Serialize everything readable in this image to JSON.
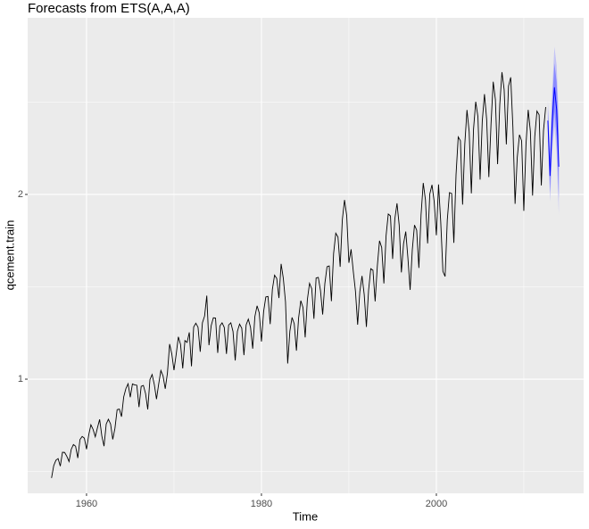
{
  "chart_data": {
    "type": "line",
    "title": "Forecasts from ETS(A,A,A)",
    "x_label": "Time",
    "y_label": "qcement.train",
    "xlim": [
      1953.27,
      2016.84
    ],
    "ylim": [
      0.382,
      2.956
    ],
    "xticks": [
      1960,
      1980,
      2000
    ],
    "yticks": [
      1,
      2
    ],
    "xminor": [
      1970,
      1990,
      2010
    ],
    "yminor": [
      0.5,
      1.5,
      2.5
    ],
    "grid": true,
    "series": [
      {
        "name": "qcement.train",
        "color": "#000000",
        "x": [
          1956,
          1956.25,
          1956.5,
          1956.75,
          1957,
          1957.25,
          1957.5,
          1957.75,
          1958,
          1958.25,
          1958.5,
          1958.75,
          1959,
          1959.25,
          1959.5,
          1959.75,
          1960,
          1960.25,
          1960.5,
          1960.75,
          1961,
          1961.25,
          1961.5,
          1961.75,
          1962,
          1962.25,
          1962.5,
          1962.75,
          1963,
          1963.25,
          1963.5,
          1963.75,
          1964,
          1964.25,
          1964.5,
          1964.75,
          1965,
          1965.25,
          1965.5,
          1965.75,
          1966,
          1966.25,
          1966.5,
          1966.75,
          1967,
          1967.25,
          1967.5,
          1967.75,
          1968,
          1968.25,
          1968.5,
          1968.75,
          1969,
          1969.25,
          1969.5,
          1969.75,
          1970,
          1970.25,
          1970.5,
          1970.75,
          1971,
          1971.25,
          1971.5,
          1971.75,
          1972,
          1972.25,
          1972.5,
          1972.75,
          1973,
          1973.25,
          1973.5,
          1973.75,
          1974,
          1974.25,
          1974.5,
          1974.75,
          1975,
          1975.25,
          1975.5,
          1975.75,
          1976,
          1976.25,
          1976.5,
          1976.75,
          1977,
          1977.25,
          1977.5,
          1977.75,
          1978,
          1978.25,
          1978.5,
          1978.75,
          1979,
          1979.25,
          1979.5,
          1979.75,
          1980,
          1980.25,
          1980.5,
          1980.75,
          1981,
          1981.25,
          1981.5,
          1981.75,
          1982,
          1982.25,
          1982.5,
          1982.75,
          1983,
          1983.25,
          1983.5,
          1983.75,
          1984,
          1984.25,
          1984.5,
          1984.75,
          1985,
          1985.25,
          1985.5,
          1985.75,
          1986,
          1986.25,
          1986.5,
          1986.75,
          1987,
          1987.25,
          1987.5,
          1987.75,
          1988,
          1988.25,
          1988.5,
          1988.75,
          1989,
          1989.25,
          1989.5,
          1989.75,
          1990,
          1990.25,
          1990.5,
          1990.75,
          1991,
          1991.25,
          1991.5,
          1991.75,
          1992,
          1992.25,
          1992.5,
          1992.75,
          1993,
          1993.25,
          1993.5,
          1993.75,
          1994,
          1994.25,
          1994.5,
          1994.75,
          1995,
          1995.25,
          1995.5,
          1995.75,
          1996,
          1996.25,
          1996.5,
          1996.75,
          1997,
          1997.25,
          1997.5,
          1997.75,
          1998,
          1998.25,
          1998.5,
          1998.75,
          1999,
          1999.25,
          1999.5,
          1999.75,
          2000,
          2000.25,
          2000.5,
          2000.75,
          2001,
          2001.25,
          2001.5,
          2001.75,
          2002,
          2002.25,
          2002.5,
          2002.75,
          2003,
          2003.25,
          2003.5,
          2003.75,
          2004,
          2004.25,
          2004.5,
          2004.75,
          2005,
          2005.25,
          2005.5,
          2005.75,
          2006,
          2006.25,
          2006.5,
          2006.75,
          2007,
          2007.25,
          2007.5,
          2007.75,
          2008,
          2008.25,
          2008.5,
          2008.75,
          2009,
          2009.25,
          2009.5,
          2009.75,
          2010,
          2010.25,
          2010.5,
          2010.75,
          2011,
          2011.25,
          2011.5,
          2011.75,
          2012,
          2012.25,
          2012.5
        ],
        "values": [
          0.465,
          0.532,
          0.561,
          0.57,
          0.529,
          0.604,
          0.603,
          0.582,
          0.554,
          0.62,
          0.646,
          0.637,
          0.573,
          0.673,
          0.69,
          0.681,
          0.621,
          0.698,
          0.753,
          0.728,
          0.688,
          0.737,
          0.782,
          0.692,
          0.637,
          0.757,
          0.783,
          0.757,
          0.674,
          0.734,
          0.835,
          0.838,
          0.797,
          0.904,
          0.949,
          0.975,
          0.902,
          0.974,
          0.969,
          0.967,
          0.849,
          0.961,
          0.966,
          0.922,
          0.836,
          0.998,
          1.025,
          0.971,
          0.892,
          0.973,
          1.047,
          1.017,
          0.948,
          1.032,
          1.19,
          1.136,
          1.049,
          1.134,
          1.229,
          1.188,
          1.058,
          1.209,
          1.199,
          1.253,
          1.07,
          1.282,
          1.303,
          1.281,
          1.148,
          1.305,
          1.342,
          1.452,
          1.184,
          1.289,
          1.332,
          1.331,
          1.142,
          1.288,
          1.305,
          1.28,
          1.137,
          1.293,
          1.305,
          1.258,
          1.101,
          1.259,
          1.298,
          1.276,
          1.13,
          1.294,
          1.325,
          1.281,
          1.165,
          1.339,
          1.397,
          1.359,
          1.204,
          1.367,
          1.445,
          1.448,
          1.298,
          1.486,
          1.563,
          1.545,
          1.439,
          1.624,
          1.546,
          1.419,
          1.085,
          1.26,
          1.334,
          1.3,
          1.154,
          1.332,
          1.425,
          1.388,
          1.226,
          1.43,
          1.519,
          1.49,
          1.327,
          1.548,
          1.551,
          1.48,
          1.35,
          1.517,
          1.609,
          1.613,
          1.422,
          1.68,
          1.79,
          1.77,
          1.608,
          1.864,
          1.97,
          1.885,
          1.63,
          1.703,
          1.584,
          1.476,
          1.295,
          1.474,
          1.559,
          1.458,
          1.283,
          1.481,
          1.598,
          1.59,
          1.421,
          1.612,
          1.749,
          1.713,
          1.518,
          1.776,
          1.894,
          1.884,
          1.651,
          1.867,
          1.952,
          1.834,
          1.578,
          1.734,
          1.799,
          1.654,
          1.483,
          1.701,
          1.834,
          1.807,
          1.602,
          1.89,
          2.062,
          1.972,
          1.735,
          2.003,
          2.052,
          1.962,
          1.779,
          2.054,
          1.852,
          1.583,
          1.556,
          1.862,
          2.01,
          2.005,
          1.738,
          2.107,
          2.311,
          2.291,
          1.945,
          2.272,
          2.457,
          2.34,
          2.006,
          2.354,
          2.502,
          2.421,
          2.08,
          2.398,
          2.543,
          2.406,
          2.094,
          2.382,
          2.61,
          2.513,
          2.164,
          2.486,
          2.662,
          2.567,
          2.271,
          2.587,
          2.634,
          2.365,
          1.949,
          2.201,
          2.323,
          2.29,
          1.911,
          2.273,
          2.458,
          2.341,
          1.994,
          2.313,
          2.451,
          2.431,
          2.049,
          2.346,
          2.473
        ]
      }
    ],
    "forecast": {
      "color": "#0000ff",
      "color80": "#8a8aff",
      "color95": "#c4c4f5",
      "x": [
        2012.75,
        2013,
        2013.25,
        2013.5,
        2013.75,
        2014
      ],
      "values": [
        2.4,
        2.1,
        2.4,
        2.58,
        2.46,
        2.15
      ],
      "lower80": [
        2.33,
        2.01,
        2.29,
        2.45,
        2.31,
        1.98
      ],
      "upper80": [
        2.47,
        2.19,
        2.51,
        2.71,
        2.61,
        2.32
      ],
      "lower95": [
        2.29,
        1.96,
        2.23,
        2.37,
        2.22,
        1.89
      ],
      "upper95": [
        2.51,
        2.24,
        2.57,
        2.8,
        2.7,
        2.41
      ]
    }
  }
}
